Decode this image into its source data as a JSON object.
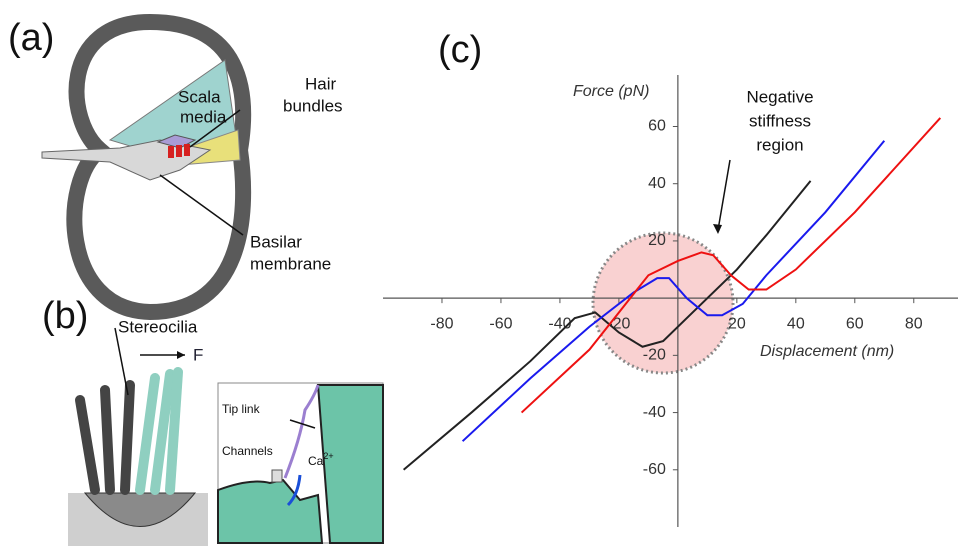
{
  "panel_a": {
    "label": "(a)",
    "scala": "Scala",
    "media": "media",
    "hair": "Hair",
    "bundles": "bundles",
    "basilar": "Basilar",
    "membrane": "membrane"
  },
  "panel_b": {
    "label": "(b)",
    "stereocilia": "Stereocilia",
    "force": "F",
    "tip_link": "Tip link",
    "channels": "Channels",
    "ca": "Ca",
    "ca_sup": "2+"
  },
  "chart_data": {
    "type": "line",
    "panel_label": "(c)",
    "y_label": "Force (pN)",
    "x_label": "Displacement (nm)",
    "annotation": [
      "Negative",
      "stiffness",
      "region"
    ],
    "xlim": [
      -100,
      95
    ],
    "ylim": [
      -80,
      78
    ],
    "xticks": [
      -80,
      -60,
      -40,
      -20,
      20,
      40,
      60,
      80
    ],
    "yticks": [
      -60,
      -40,
      -20,
      20,
      40,
      60
    ],
    "series": [
      {
        "color": "#222222",
        "x": [
          -93,
          -70,
          -50,
          -35,
          -28,
          -20,
          -12,
          -5,
          5,
          20,
          30,
          45
        ],
        "values": [
          -60,
          -40,
          -22,
          -7,
          -5,
          -12,
          -17,
          -15,
          -5,
          10,
          22,
          41
        ]
      },
      {
        "color": "#1a1aee",
        "x": [
          -73,
          -50,
          -30,
          -15,
          -7,
          -3,
          3,
          10,
          15,
          22,
          30,
          50,
          70
        ],
        "values": [
          -50,
          -28,
          -10,
          2,
          7,
          7,
          0,
          -6,
          -6,
          -2,
          8,
          30,
          55
        ]
      },
      {
        "color": "#ee1111",
        "x": [
          -53,
          -30,
          -20,
          -10,
          0,
          8,
          12,
          18,
          24,
          30,
          40,
          60,
          89
        ],
        "values": [
          -40,
          -18,
          -5,
          8,
          13,
          16,
          15,
          8,
          3,
          3,
          10,
          30,
          63
        ]
      }
    ]
  }
}
